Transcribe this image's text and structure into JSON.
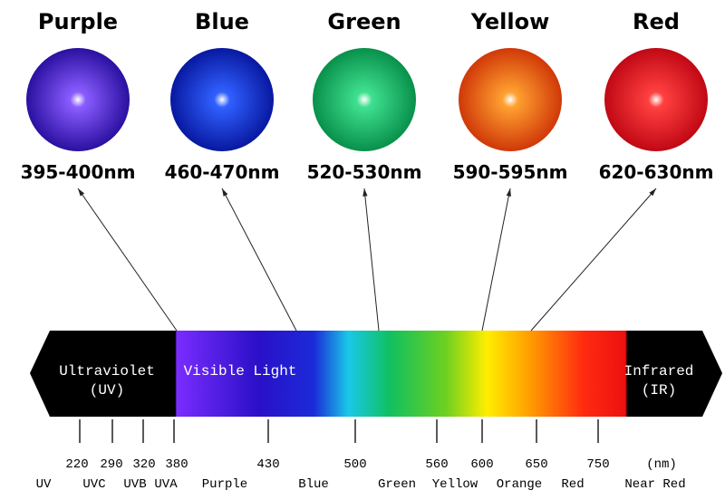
{
  "leds": [
    {
      "name": "Purple",
      "wavelength": "395-400nm"
    },
    {
      "name": "Blue",
      "wavelength": "460-470nm"
    },
    {
      "name": "Green",
      "wavelength": "520-530nm"
    },
    {
      "name": "Yellow",
      "wavelength": "590-595nm"
    },
    {
      "name": "Red",
      "wavelength": "620-630nm"
    }
  ],
  "spectrum": {
    "regions": [
      [
        "Ultraviolet",
        "(UV)"
      ],
      [
        "Visible Light"
      ],
      [
        "Infrared",
        "(IR)"
      ]
    ],
    "ticks": [
      "220",
      "290",
      "320",
      "380",
      "430",
      "500",
      "560",
      "600",
      "650",
      "750"
    ],
    "unit": "(nm)",
    "bands": [
      "UV",
      "UVC",
      "UVB",
      "UVA",
      "Purple",
      "Blue",
      "Green",
      "Yellow",
      "Orange",
      "Red",
      "Near Red"
    ]
  }
}
